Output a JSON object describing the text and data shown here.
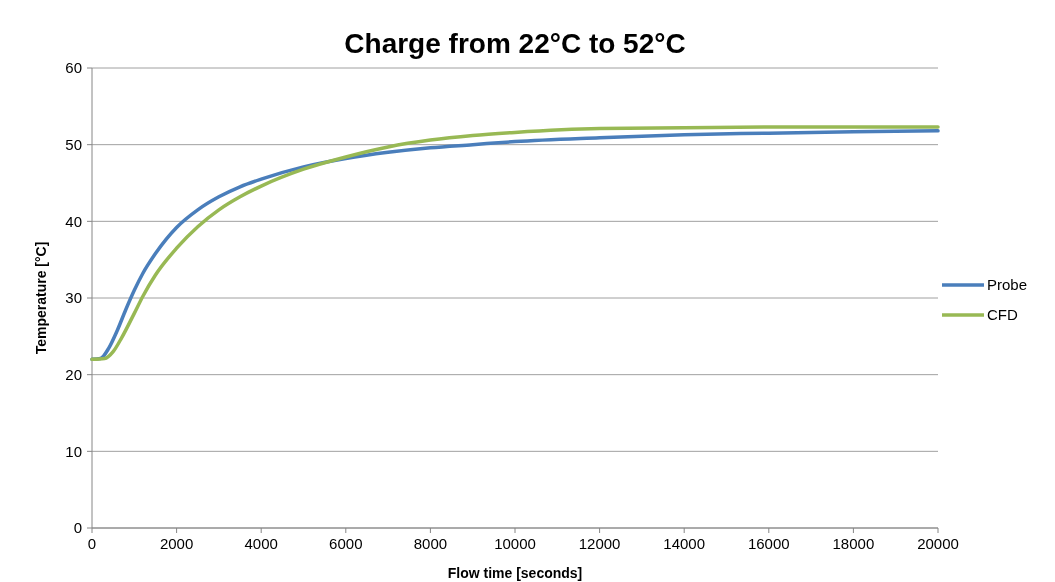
{
  "chart_data": {
    "type": "line",
    "title": "Charge from 22°C to 52°C",
    "xlabel": "Flow time [seconds]",
    "ylabel": "Temperature [°C]",
    "xlim": [
      0,
      20000
    ],
    "xticks": [
      0,
      2000,
      4000,
      6000,
      8000,
      10000,
      12000,
      14000,
      16000,
      18000,
      20000
    ],
    "ylim": [
      0,
      60
    ],
    "yticks": [
      0,
      10,
      20,
      30,
      40,
      50,
      60
    ],
    "grid": "y",
    "legend": "right",
    "marker": "none",
    "line_style": "solid",
    "series": [
      {
        "name": "Probe",
        "color": "#4a7ebb",
        "x": [
          0,
          200,
          400,
          600,
          800,
          1000,
          1200,
          1500,
          2000,
          2500,
          3000,
          3500,
          4000,
          5000,
          6000,
          7000,
          8000,
          9000,
          10000,
          12000,
          14000,
          16000,
          18000,
          20000
        ],
        "values": [
          22,
          22.1,
          23.5,
          25.8,
          28.5,
          31,
          33.2,
          35.8,
          39.2,
          41.5,
          43.2,
          44.5,
          45.5,
          47.1,
          48.2,
          49,
          49.6,
          50,
          50.4,
          50.9,
          51.3,
          51.5,
          51.7,
          51.8
        ]
      },
      {
        "name": "CFD",
        "color": "#98b954",
        "x": [
          0,
          300,
          500,
          700,
          1000,
          1200,
          1500,
          2000,
          2500,
          3000,
          3500,
          4000,
          5000,
          6000,
          7000,
          8000,
          9000,
          10000,
          12000,
          14000,
          16000,
          20000
        ],
        "values": [
          22,
          22.1,
          23,
          24.8,
          28,
          30.2,
          33,
          36.5,
          39.3,
          41.5,
          43.2,
          44.6,
          46.8,
          48.4,
          49.7,
          50.6,
          51.2,
          51.6,
          52.1,
          52.2,
          52.3,
          52.3
        ]
      }
    ]
  }
}
